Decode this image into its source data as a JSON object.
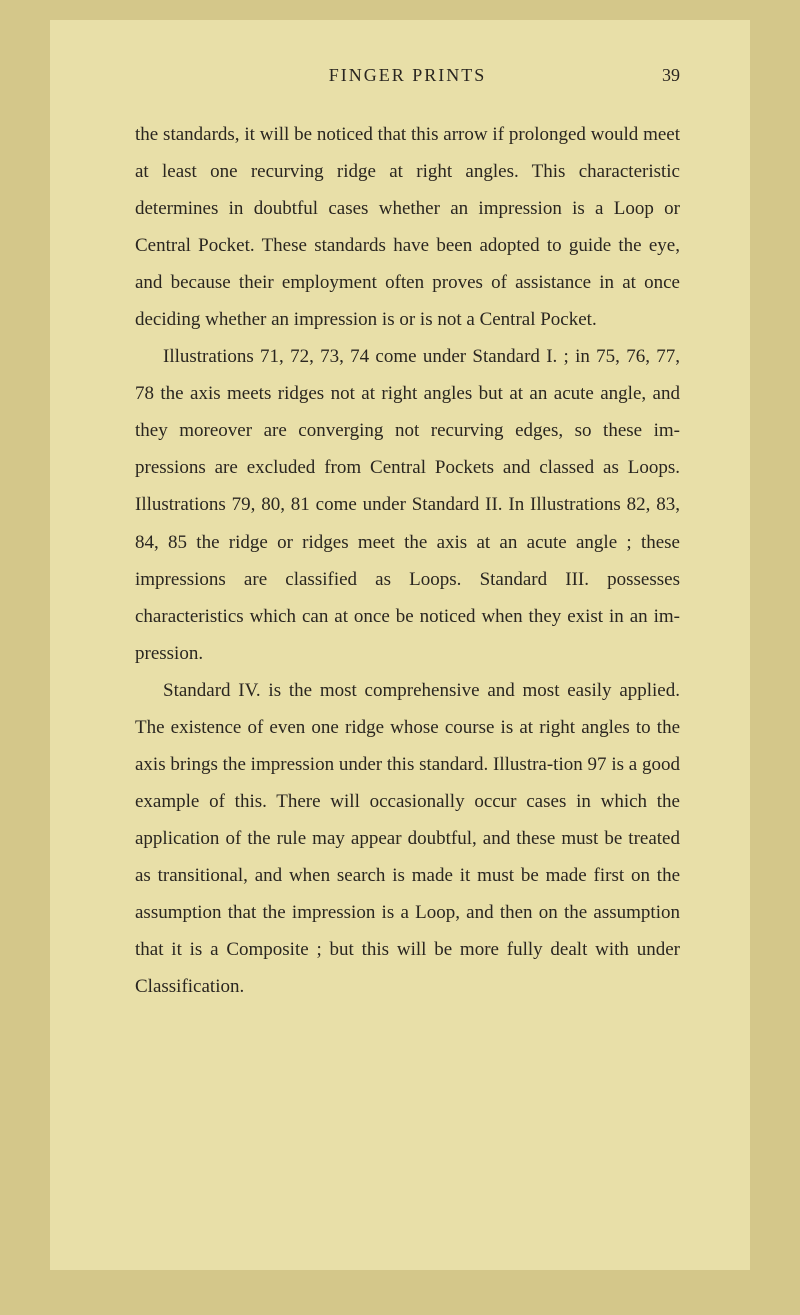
{
  "page": {
    "header_title": "FINGER PRINTS",
    "page_number": "39",
    "background_color": "#e8dfa8",
    "outer_background": "#d4c78a",
    "text_color": "#2a2620",
    "font_family": "Georgia, Times New Roman, serif",
    "body_font_size": 19,
    "header_font_size": 18,
    "line_height": 1.95
  },
  "paragraphs": {
    "p1": "the standards, it will be noticed that this arrow if prolonged would meet at least one recurving ridge at right angles. This characteristic determines in doubtful cases whether an impression is a Loop or Central Pocket. These standards have been adopted to guide the eye, and because their employment often proves of assistance in at once deciding whether an impression is or is not a Central Pocket.",
    "p2": "Illustrations 71, 72, 73, 74 come under Standard I. ; in 75, 76, 77, 78 the axis meets ridges not at right angles but at an acute angle, and they moreover are converging not recurving edges, so these im-pressions are excluded from Central Pockets and classed as Loops. Illustrations 79, 80, 81 come under Standard II. In Illustrations 82, 83, 84, 85 the ridge or ridges meet the axis at an acute angle ; these impressions are classified as Loops. Standard III. possesses characteristics which can at once be noticed when they exist in an im-pression.",
    "p3": "Standard IV. is the most comprehensive and most easily applied. The existence of even one ridge whose course is at right angles to the axis brings the impression under this standard. Illustra-tion 97 is a good example of this. There will occasionally occur cases in which the application of the rule may appear doubtful, and these must be treated as transitional, and when search is made it must be made first on the assumption that the impression is a Loop, and then on the assumption that it is a Composite ; but this will be more fully dealt with under Classification."
  }
}
